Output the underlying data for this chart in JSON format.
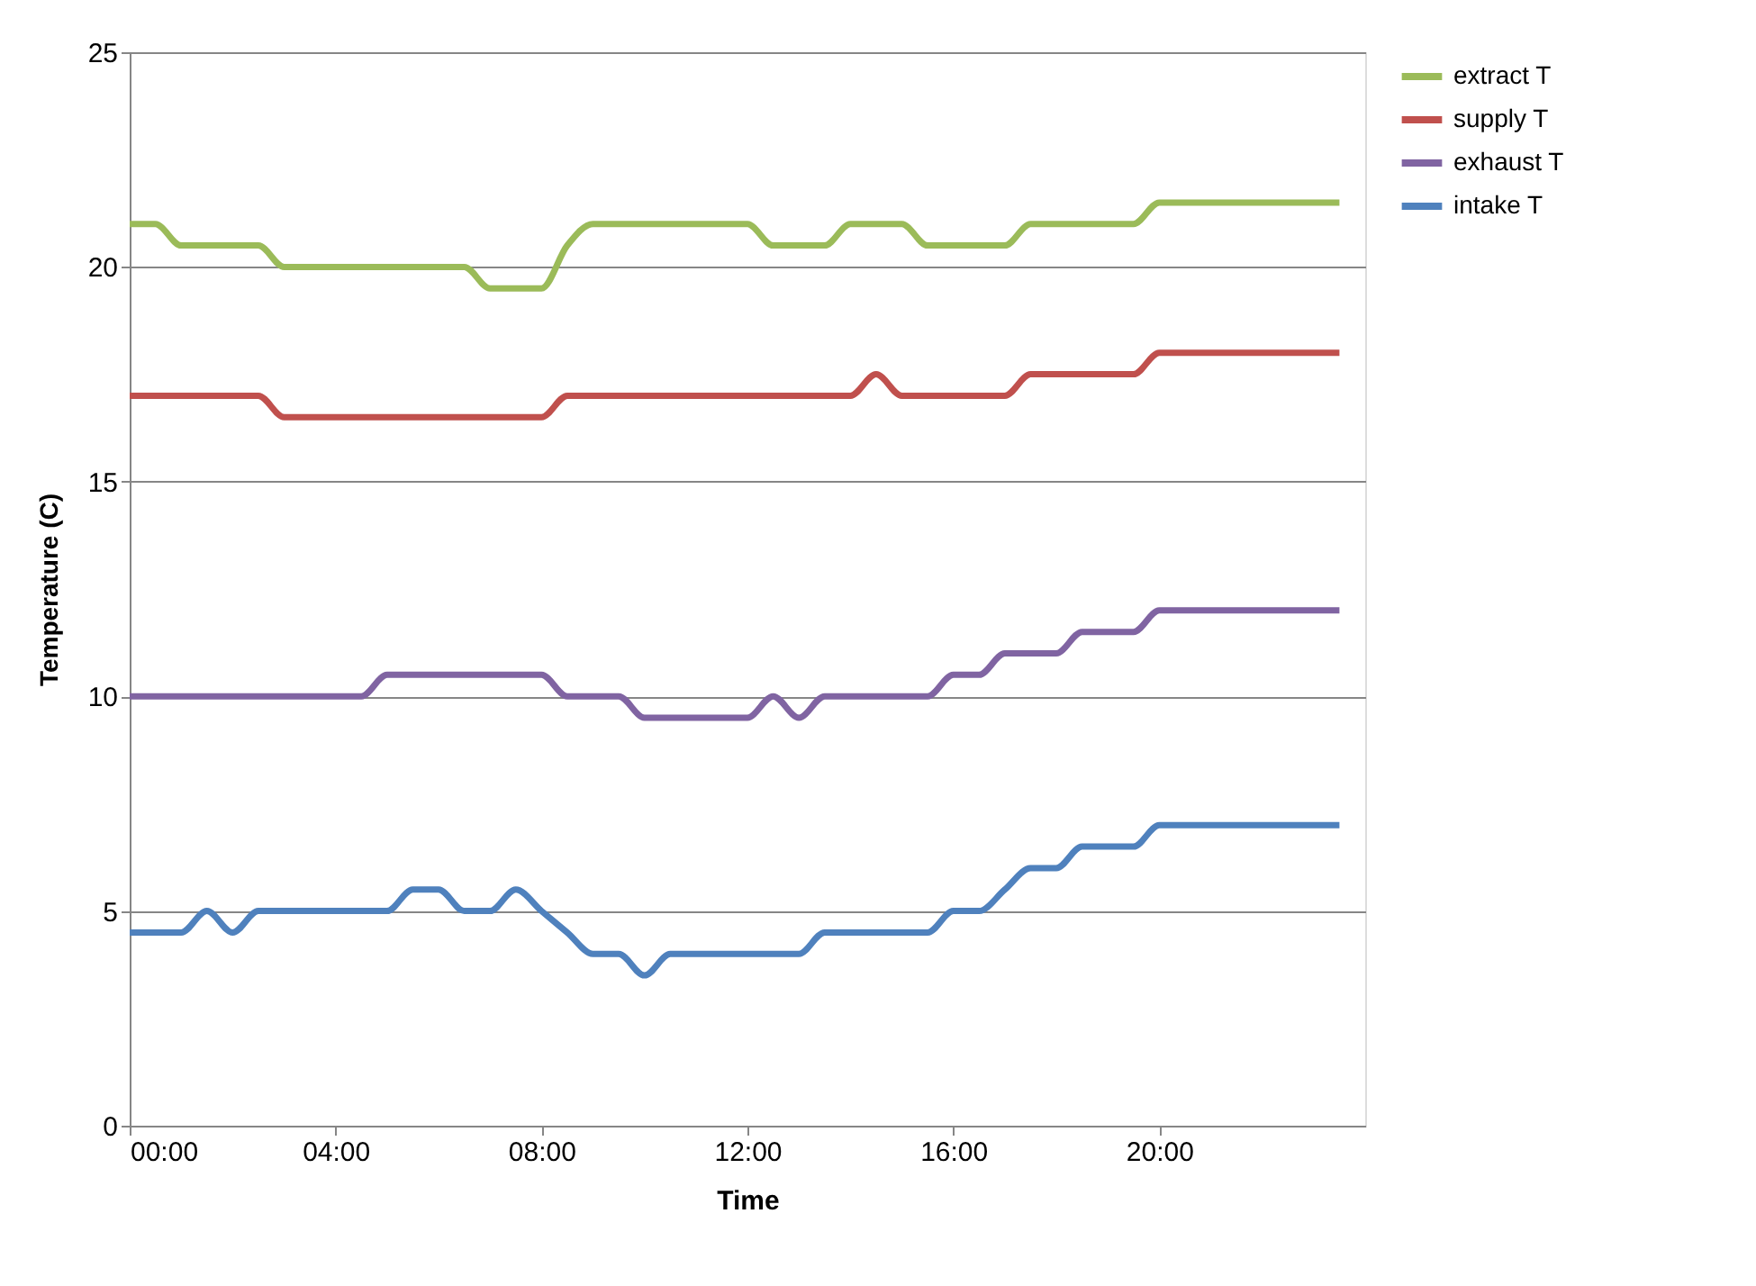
{
  "chart_data": {
    "type": "line",
    "xlabel": "Time",
    "ylabel": "Temperature (C)",
    "x": [
      0,
      0.5,
      1,
      1.5,
      2,
      2.5,
      3,
      3.5,
      4,
      4.5,
      5,
      5.5,
      6,
      6.5,
      7,
      7.5,
      8,
      8.5,
      9,
      9.5,
      10,
      10.5,
      11,
      11.5,
      12,
      12.5,
      13,
      13.5,
      14,
      14.5,
      15,
      15.5,
      16,
      16.5,
      17,
      17.5,
      18,
      18.5,
      19,
      19.5,
      20,
      20.5,
      21,
      21.5,
      22,
      22.5,
      23,
      23.5
    ],
    "series": [
      {
        "name": "extract T",
        "color": "#9bbb59",
        "values": [
          21,
          21,
          20.5,
          20.5,
          20.5,
          20.5,
          20,
          20,
          20,
          20,
          20,
          20,
          20,
          20,
          19.5,
          19.5,
          19.5,
          20.5,
          21,
          21,
          21,
          21,
          21,
          21,
          21,
          20.5,
          20.5,
          20.5,
          21,
          21,
          21,
          20.5,
          20.5,
          20.5,
          20.5,
          21,
          21,
          21,
          21,
          21,
          21.5,
          21.5,
          21.5,
          21.5,
          21.5,
          21.5,
          21.5,
          21.5
        ]
      },
      {
        "name": "supply T",
        "color": "#c0504d",
        "values": [
          17,
          17,
          17,
          17,
          17,
          17,
          16.5,
          16.5,
          16.5,
          16.5,
          16.5,
          16.5,
          16.5,
          16.5,
          16.5,
          16.5,
          16.5,
          17,
          17,
          17,
          17,
          17,
          17,
          17,
          17,
          17,
          17,
          17,
          17,
          17.5,
          17,
          17,
          17,
          17,
          17,
          17.5,
          17.5,
          17.5,
          17.5,
          17.5,
          18,
          18,
          18,
          18,
          18,
          18,
          18,
          18
        ]
      },
      {
        "name": "exhaust T",
        "color": "#8064a2",
        "values": [
          10,
          10,
          10,
          10,
          10,
          10,
          10,
          10,
          10,
          10,
          10.5,
          10.5,
          10.5,
          10.5,
          10.5,
          10.5,
          10.5,
          10,
          10,
          10,
          9.5,
          9.5,
          9.5,
          9.5,
          9.5,
          10,
          9.5,
          10,
          10,
          10,
          10,
          10,
          10.5,
          10.5,
          11,
          11,
          11,
          11.5,
          11.5,
          11.5,
          12,
          12,
          12,
          12,
          12,
          12,
          12,
          12
        ]
      },
      {
        "name": "intake T",
        "color": "#4f81bd",
        "values": [
          4.5,
          4.5,
          4.5,
          5,
          4.5,
          5,
          5,
          5,
          5,
          5,
          5,
          5.5,
          5.5,
          5,
          5,
          5.5,
          5,
          4.5,
          4,
          4,
          3.5,
          4,
          4,
          4,
          4,
          4,
          4,
          4.5,
          4.5,
          4.5,
          4.5,
          4.5,
          5,
          5,
          5.5,
          6,
          6,
          6.5,
          6.5,
          6.5,
          7,
          7,
          7,
          7,
          7,
          7,
          7,
          7
        ]
      }
    ],
    "xlim": [
      0,
      24
    ],
    "xticks": [
      {
        "value": 0,
        "label": "00:00"
      },
      {
        "value": 4,
        "label": "04:00"
      },
      {
        "value": 8,
        "label": "08:00"
      },
      {
        "value": 12,
        "label": "12:00"
      },
      {
        "value": 16,
        "label": "16:00"
      },
      {
        "value": 20,
        "label": "20:00"
      }
    ],
    "ylim": [
      0,
      25
    ],
    "yticks": [
      0,
      5,
      10,
      15,
      20,
      25
    ],
    "grid": "y",
    "legend": "right",
    "marker": "none",
    "line_style": "solid"
  }
}
